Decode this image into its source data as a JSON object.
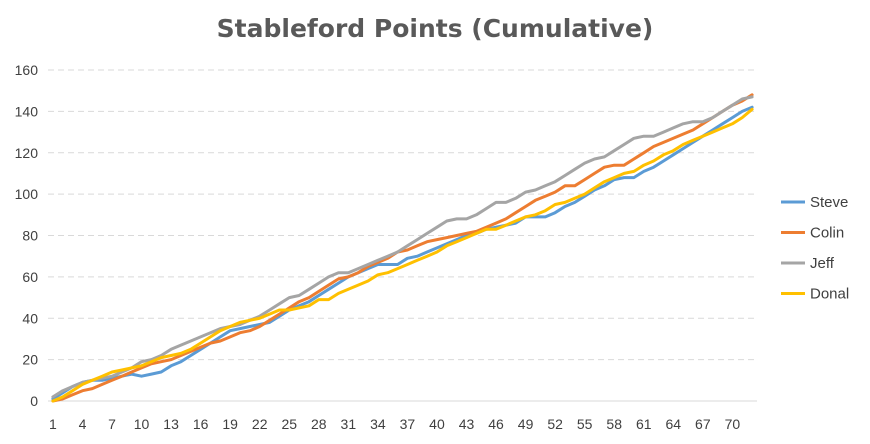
{
  "chart_data": {
    "type": "line",
    "title": "Stableford Points (Cumulative)",
    "xlabel": "",
    "ylabel": "",
    "ylim": [
      0,
      160
    ],
    "yticks": [
      0,
      20,
      40,
      60,
      80,
      100,
      120,
      140,
      160
    ],
    "xlim": [
      1,
      72
    ],
    "xticks": [
      1,
      4,
      7,
      10,
      13,
      16,
      19,
      22,
      25,
      28,
      31,
      34,
      37,
      40,
      43,
      46,
      49,
      52,
      55,
      58,
      61,
      64,
      67,
      70
    ],
    "grid": "horizontal dashed",
    "legend_position": "right",
    "series": [
      {
        "name": "Steve",
        "color": "#5B9BD5",
        "values": [
          1,
          4,
          7,
          9,
          10,
          10,
          11,
          12,
          13,
          12,
          13,
          14,
          17,
          19,
          22,
          25,
          28,
          31,
          34,
          35,
          36,
          37,
          38,
          41,
          44,
          46,
          48,
          51,
          54,
          57,
          60,
          62,
          64,
          66,
          66,
          66,
          69,
          70,
          72,
          74,
          76,
          78,
          80,
          81,
          83,
          84,
          85,
          86,
          89,
          89,
          89,
          91,
          94,
          96,
          99,
          102,
          104,
          107,
          108,
          108,
          111,
          113,
          116,
          119,
          122,
          125,
          128,
          131,
          134,
          137,
          140,
          142
        ]
      },
      {
        "name": "Colin",
        "color": "#ED7D31",
        "values": [
          0,
          1,
          3,
          5,
          6,
          8,
          10,
          12,
          14,
          16,
          18,
          19,
          20,
          22,
          24,
          26,
          28,
          29,
          31,
          33,
          34,
          36,
          39,
          42,
          45,
          48,
          50,
          53,
          56,
          59,
          60,
          62,
          65,
          67,
          69,
          72,
          73,
          75,
          77,
          78,
          79,
          80,
          81,
          82,
          84,
          86,
          88,
          91,
          94,
          97,
          99,
          101,
          104,
          104,
          107,
          110,
          113,
          114,
          114,
          117,
          120,
          123,
          125,
          127,
          129,
          131,
          134,
          137,
          140,
          143,
          145,
          148
        ]
      },
      {
        "name": "Jeff",
        "color": "#A5A5A5",
        "values": [
          2,
          5,
          7,
          9,
          10,
          11,
          12,
          14,
          16,
          19,
          20,
          22,
          25,
          27,
          29,
          31,
          33,
          35,
          36,
          37,
          39,
          41,
          44,
          47,
          50,
          51,
          54,
          57,
          60,
          62,
          62,
          64,
          66,
          68,
          70,
          72,
          75,
          78,
          81,
          84,
          87,
          88,
          88,
          90,
          93,
          96,
          96,
          98,
          101,
          102,
          104,
          106,
          109,
          112,
          115,
          117,
          118,
          121,
          124,
          127,
          128,
          128,
          130,
          132,
          134,
          135,
          135,
          137,
          140,
          143,
          146,
          147
        ]
      },
      {
        "name": "Donal",
        "color": "#FFC000",
        "values": [
          0,
          2,
          5,
          8,
          10,
          12,
          14,
          15,
          16,
          17,
          19,
          21,
          22,
          23,
          25,
          28,
          31,
          34,
          36,
          38,
          39,
          40,
          42,
          44,
          44,
          45,
          46,
          49,
          49,
          52,
          54,
          56,
          58,
          61,
          62,
          64,
          66,
          68,
          70,
          72,
          75,
          77,
          79,
          81,
          83,
          83,
          85,
          87,
          89,
          90,
          92,
          95,
          96,
          98,
          100,
          103,
          106,
          108,
          110,
          111,
          114,
          116,
          119,
          121,
          124,
          126,
          128,
          130,
          132,
          134,
          137,
          141
        ]
      }
    ]
  }
}
